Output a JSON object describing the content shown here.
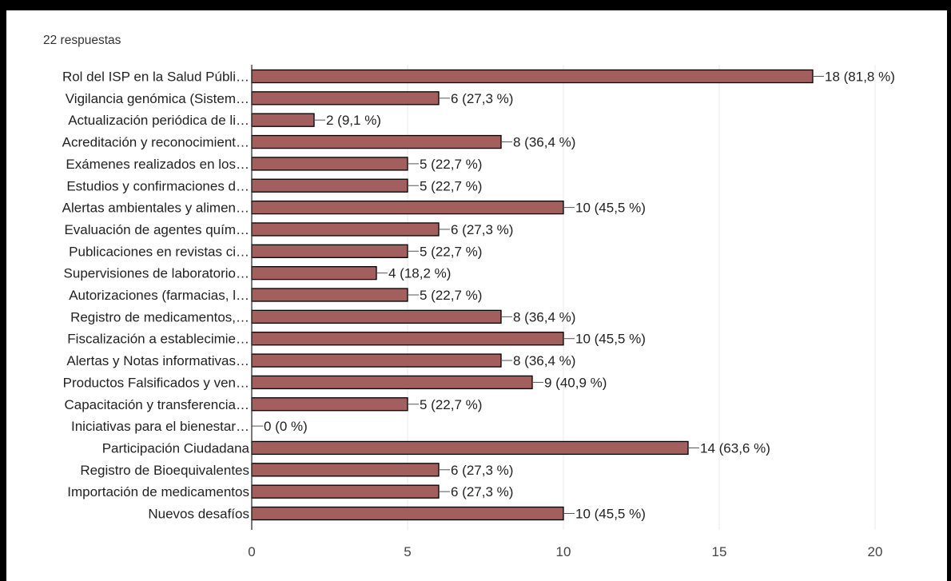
{
  "header": {
    "response_count": "22 respuestas"
  },
  "colors": {
    "bar": "#a35e5e",
    "grid": "#e8e8e8",
    "axis": "#333333",
    "frame": "#000000"
  },
  "chart_data": {
    "type": "bar",
    "orientation": "horizontal",
    "categories": [
      "Rol del ISP en la Salud Públi…",
      "Vigilancia genómica (Sistem…",
      "Actualización periódica de li…",
      "Acreditación y reconocimient…",
      "Exámenes realizados en los…",
      "Estudios y confirmaciones d…",
      "Alertas ambientales y alimen…",
      "Evaluación de agentes quím…",
      "Publicaciones en revistas ci…",
      "Supervisiones de laboratorio…",
      "Autorizaciones (farmacias, l…",
      "Registro de medicamentos,…",
      "Fiscalización a establecimie…",
      "Alertas y Notas informativas…",
      "Productos Falsificados y ven…",
      "Capacitación y transferencia…",
      "Iniciativas para el bienestar…",
      "Participación Ciudadana",
      "Registro de Bioequivalentes",
      "Importación de medicamentos",
      "Nuevos desafíos"
    ],
    "values": [
      18,
      6,
      2,
      8,
      5,
      5,
      10,
      6,
      5,
      4,
      5,
      8,
      10,
      8,
      9,
      5,
      0,
      14,
      6,
      6,
      10
    ],
    "value_labels": [
      "18 (81,8 %)",
      "6 (27,3 %)",
      "2 (9,1 %)",
      "8 (36,4 %)",
      "5 (22,7 %)",
      "5 (22,7 %)",
      "10 (45,5 %)",
      "6 (27,3 %)",
      "5 (22,7 %)",
      "4 (18,2 %)",
      "5 (22,7 %)",
      "8 (36,4 %)",
      "10 (45,5 %)",
      "8 (36,4 %)",
      "9 (40,9 %)",
      "5 (22,7 %)",
      "0 (0 %)",
      "14 (63,6 %)",
      "6 (27,3 %)",
      "6 (27,3 %)",
      "10 (45,5 %)"
    ],
    "x_ticks": [
      "0",
      "5",
      "10",
      "15",
      "20"
    ],
    "xlim": [
      0,
      20
    ],
    "grid": true,
    "legend": "none"
  }
}
